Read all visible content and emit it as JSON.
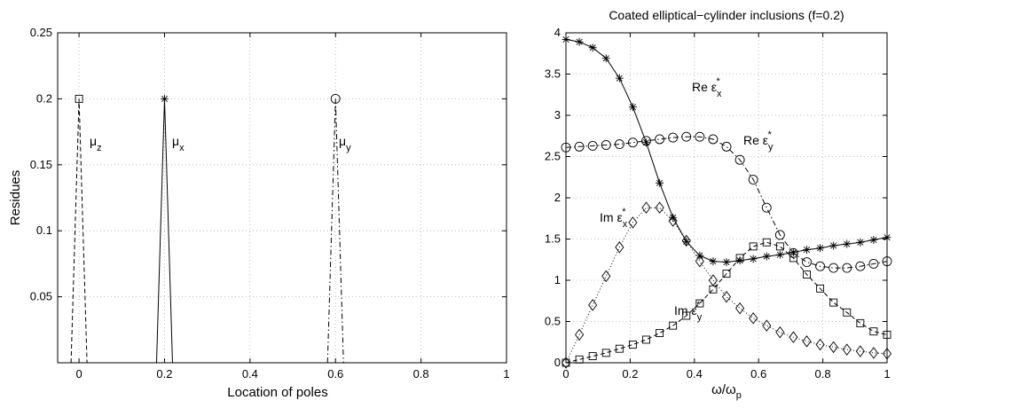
{
  "chart_data": [
    {
      "type": "stem",
      "title": "",
      "xlabel": "Location of poles",
      "ylabel": "Residues",
      "xlim": [
        -0.05,
        1.0
      ],
      "ylim": [
        0.0,
        0.25
      ],
      "xticks": [
        "0",
        "0.2",
        "0.4",
        "0.6",
        "0.8",
        "1"
      ],
      "yticks": [
        "0.05",
        "0.1",
        "0.15",
        "0.2",
        "0.25"
      ],
      "grid": true,
      "series": [
        {
          "name": "μz",
          "marker": "square",
          "line": "dashed",
          "color": "#000000",
          "x": [
            0.0
          ],
          "y": [
            0.2
          ]
        },
        {
          "name": "μx",
          "marker": "star",
          "line": "solid",
          "color": "#000000",
          "x": [
            0.2
          ],
          "y": [
            0.2
          ]
        },
        {
          "name": "μy",
          "marker": "circle",
          "line": "dashdot",
          "color": "#000000",
          "x": [
            0.6
          ],
          "y": [
            0.2
          ]
        }
      ],
      "annotations": [
        {
          "base": "μ",
          "sub": "z"
        },
        {
          "base": "μ",
          "sub": "x"
        },
        {
          "base": "μ",
          "sub": "y"
        }
      ]
    },
    {
      "type": "line",
      "title": "Coated elliptical−cylinder inclusions (f=0.2)",
      "xlabel": "ω/ω",
      "xlabel_sub": "p",
      "ylabel": "",
      "xlim": [
        0,
        1
      ],
      "ylim": [
        0,
        4
      ],
      "xticks": [
        "0",
        "0.2",
        "0.4",
        "0.6",
        "0.8",
        "1"
      ],
      "yticks": [
        "0",
        "0.5",
        "1",
        "1.5",
        "2",
        "2.5",
        "3",
        "3.5",
        "4"
      ],
      "grid": true,
      "x": [
        0,
        0.0417,
        0.0833,
        0.125,
        0.1667,
        0.2083,
        0.25,
        0.2917,
        0.3333,
        0.375,
        0.4167,
        0.4583,
        0.5,
        0.5417,
        0.5833,
        0.625,
        0.6667,
        0.7083,
        0.75,
        0.7917,
        0.8333,
        0.875,
        0.9167,
        0.9583,
        1.0
      ],
      "series": [
        {
          "name": "Re εx*",
          "marker": "star",
          "line": "solid",
          "color": "#000000",
          "values": [
            3.92,
            3.89,
            3.82,
            3.69,
            3.45,
            3.1,
            2.67,
            2.18,
            1.76,
            1.47,
            1.3,
            1.23,
            1.22,
            1.24,
            1.26,
            1.29,
            1.31,
            1.34,
            1.37,
            1.39,
            1.42,
            1.44,
            1.46,
            1.49,
            1.52
          ]
        },
        {
          "name": "Re εy*",
          "marker": "circle",
          "line": "dashdot",
          "color": "#000000",
          "values": [
            2.61,
            2.62,
            2.63,
            2.64,
            2.65,
            2.67,
            2.69,
            2.71,
            2.73,
            2.74,
            2.74,
            2.71,
            2.62,
            2.46,
            2.22,
            1.88,
            1.55,
            1.33,
            1.22,
            1.17,
            1.15,
            1.15,
            1.17,
            1.2,
            1.23
          ]
        },
        {
          "name": "Im εx*",
          "marker": "diamond",
          "line": "dotted",
          "color": "#000000",
          "values": [
            0.0,
            0.34,
            0.7,
            1.05,
            1.4,
            1.7,
            1.88,
            1.88,
            1.72,
            1.48,
            1.23,
            1.0,
            0.8,
            0.66,
            0.54,
            0.45,
            0.37,
            0.31,
            0.26,
            0.22,
            0.19,
            0.16,
            0.14,
            0.12,
            0.11
          ]
        },
        {
          "name": "Im εy*",
          "marker": "square",
          "line": "dashed",
          "color": "#000000",
          "values": [
            0.0,
            0.04,
            0.08,
            0.12,
            0.17,
            0.22,
            0.28,
            0.36,
            0.45,
            0.57,
            0.72,
            0.89,
            1.08,
            1.27,
            1.41,
            1.46,
            1.41,
            1.27,
            1.07,
            0.9,
            0.73,
            0.61,
            0.48,
            0.38,
            0.34
          ]
        }
      ],
      "annotations": [
        {
          "text": "Re ε",
          "sub": "x",
          "sup": "*"
        },
        {
          "text": "Re ε",
          "sub": "y",
          "sup": "*"
        },
        {
          "text": "Im ε",
          "sub": "x",
          "sup": "*"
        },
        {
          "text": "Im ε",
          "sub": "y",
          "sup": "*"
        }
      ]
    }
  ]
}
